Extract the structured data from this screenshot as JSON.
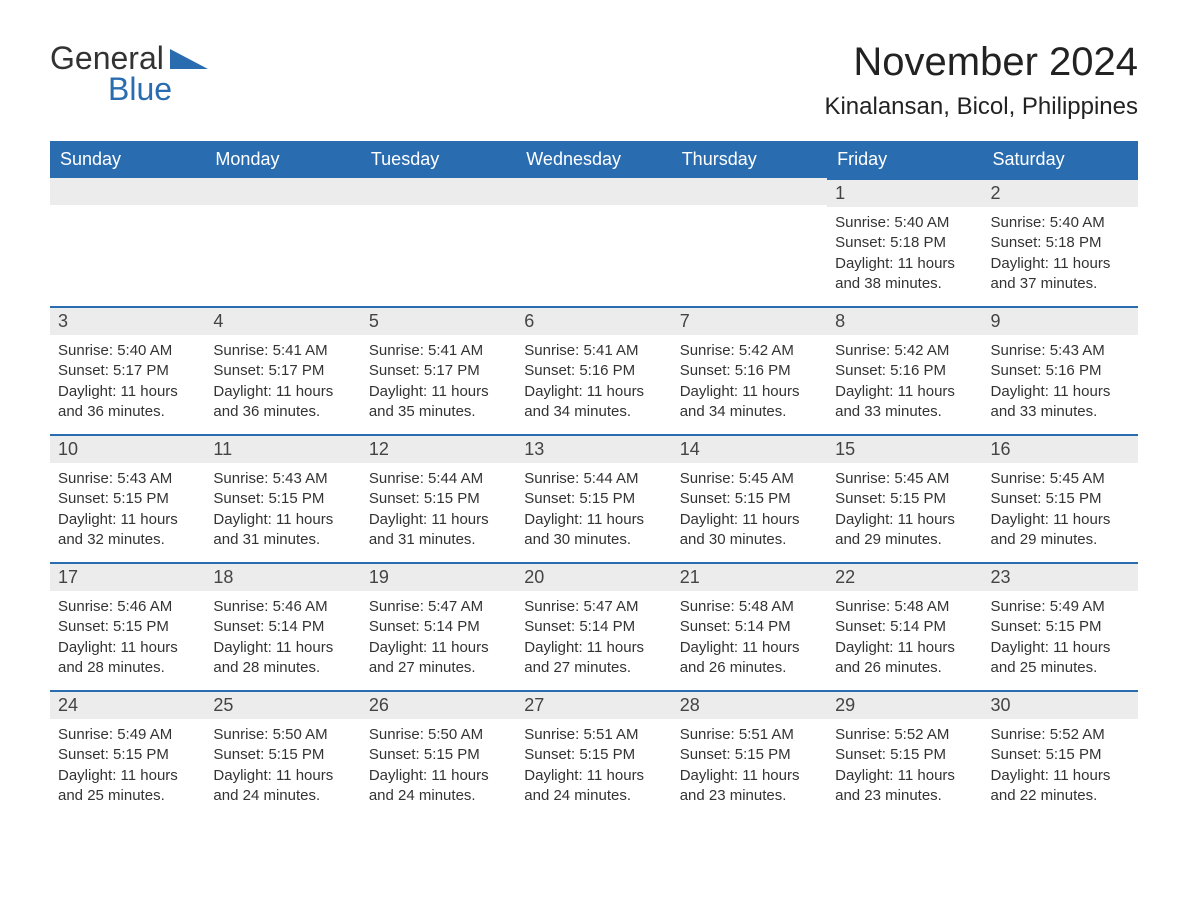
{
  "logo": {
    "text1": "General",
    "text2": "Blue"
  },
  "title": "November 2024",
  "location": "Kinalansan, Bicol, Philippines",
  "colors": {
    "header_bg": "#2a6cb0",
    "header_text": "#ffffff",
    "daynum_bg": "#ececec",
    "row_divider": "#2a6cb0",
    "body_text": "#333333",
    "page_bg": "#ffffff"
  },
  "weekdays": [
    "Sunday",
    "Monday",
    "Tuesday",
    "Wednesday",
    "Thursday",
    "Friday",
    "Saturday"
  ],
  "labels": {
    "sunrise": "Sunrise: ",
    "sunset": "Sunset: ",
    "daylight": "Daylight: "
  },
  "first_day_index": 5,
  "days": [
    {
      "n": 1,
      "sunrise": "5:40 AM",
      "sunset": "5:18 PM",
      "daylight": "11 hours and 38 minutes."
    },
    {
      "n": 2,
      "sunrise": "5:40 AM",
      "sunset": "5:18 PM",
      "daylight": "11 hours and 37 minutes."
    },
    {
      "n": 3,
      "sunrise": "5:40 AM",
      "sunset": "5:17 PM",
      "daylight": "11 hours and 36 minutes."
    },
    {
      "n": 4,
      "sunrise": "5:41 AM",
      "sunset": "5:17 PM",
      "daylight": "11 hours and 36 minutes."
    },
    {
      "n": 5,
      "sunrise": "5:41 AM",
      "sunset": "5:17 PM",
      "daylight": "11 hours and 35 minutes."
    },
    {
      "n": 6,
      "sunrise": "5:41 AM",
      "sunset": "5:16 PM",
      "daylight": "11 hours and 34 minutes."
    },
    {
      "n": 7,
      "sunrise": "5:42 AM",
      "sunset": "5:16 PM",
      "daylight": "11 hours and 34 minutes."
    },
    {
      "n": 8,
      "sunrise": "5:42 AM",
      "sunset": "5:16 PM",
      "daylight": "11 hours and 33 minutes."
    },
    {
      "n": 9,
      "sunrise": "5:43 AM",
      "sunset": "5:16 PM",
      "daylight": "11 hours and 33 minutes."
    },
    {
      "n": 10,
      "sunrise": "5:43 AM",
      "sunset": "5:15 PM",
      "daylight": "11 hours and 32 minutes."
    },
    {
      "n": 11,
      "sunrise": "5:43 AM",
      "sunset": "5:15 PM",
      "daylight": "11 hours and 31 minutes."
    },
    {
      "n": 12,
      "sunrise": "5:44 AM",
      "sunset": "5:15 PM",
      "daylight": "11 hours and 31 minutes."
    },
    {
      "n": 13,
      "sunrise": "5:44 AM",
      "sunset": "5:15 PM",
      "daylight": "11 hours and 30 minutes."
    },
    {
      "n": 14,
      "sunrise": "5:45 AM",
      "sunset": "5:15 PM",
      "daylight": "11 hours and 30 minutes."
    },
    {
      "n": 15,
      "sunrise": "5:45 AM",
      "sunset": "5:15 PM",
      "daylight": "11 hours and 29 minutes."
    },
    {
      "n": 16,
      "sunrise": "5:45 AM",
      "sunset": "5:15 PM",
      "daylight": "11 hours and 29 minutes."
    },
    {
      "n": 17,
      "sunrise": "5:46 AM",
      "sunset": "5:15 PM",
      "daylight": "11 hours and 28 minutes."
    },
    {
      "n": 18,
      "sunrise": "5:46 AM",
      "sunset": "5:14 PM",
      "daylight": "11 hours and 28 minutes."
    },
    {
      "n": 19,
      "sunrise": "5:47 AM",
      "sunset": "5:14 PM",
      "daylight": "11 hours and 27 minutes."
    },
    {
      "n": 20,
      "sunrise": "5:47 AM",
      "sunset": "5:14 PM",
      "daylight": "11 hours and 27 minutes."
    },
    {
      "n": 21,
      "sunrise": "5:48 AM",
      "sunset": "5:14 PM",
      "daylight": "11 hours and 26 minutes."
    },
    {
      "n": 22,
      "sunrise": "5:48 AM",
      "sunset": "5:14 PM",
      "daylight": "11 hours and 26 minutes."
    },
    {
      "n": 23,
      "sunrise": "5:49 AM",
      "sunset": "5:15 PM",
      "daylight": "11 hours and 25 minutes."
    },
    {
      "n": 24,
      "sunrise": "5:49 AM",
      "sunset": "5:15 PM",
      "daylight": "11 hours and 25 minutes."
    },
    {
      "n": 25,
      "sunrise": "5:50 AM",
      "sunset": "5:15 PM",
      "daylight": "11 hours and 24 minutes."
    },
    {
      "n": 26,
      "sunrise": "5:50 AM",
      "sunset": "5:15 PM",
      "daylight": "11 hours and 24 minutes."
    },
    {
      "n": 27,
      "sunrise": "5:51 AM",
      "sunset": "5:15 PM",
      "daylight": "11 hours and 24 minutes."
    },
    {
      "n": 28,
      "sunrise": "5:51 AM",
      "sunset": "5:15 PM",
      "daylight": "11 hours and 23 minutes."
    },
    {
      "n": 29,
      "sunrise": "5:52 AM",
      "sunset": "5:15 PM",
      "daylight": "11 hours and 23 minutes."
    },
    {
      "n": 30,
      "sunrise": "5:52 AM",
      "sunset": "5:15 PM",
      "daylight": "11 hours and 22 minutes."
    }
  ]
}
